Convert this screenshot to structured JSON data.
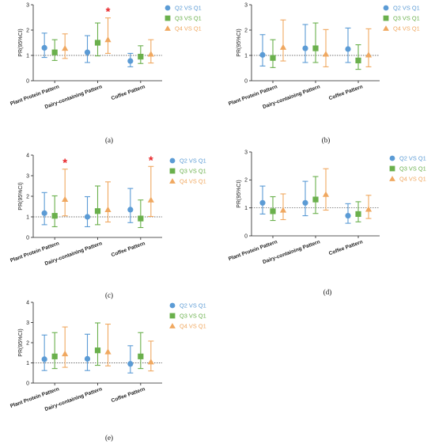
{
  "chart_data": [
    {
      "type": "scatter",
      "panel_label": "(a)",
      "ylabel": "PR(95%CI)",
      "ylim": [
        0,
        3
      ],
      "yticks": [
        0,
        1,
        2,
        3
      ],
      "reference_line": 1,
      "categories": [
        "Plant Protein Pattern",
        "Dairy-containing Pattern",
        "Coffee Pattern"
      ],
      "series": [
        {
          "name": "Q2 VS Q1",
          "color": "#5b9bd5",
          "marker": "circle",
          "values": [
            1.3,
            1.12,
            0.78
          ],
          "lower": [
            0.92,
            0.72,
            0.55
          ],
          "upper": [
            1.88,
            1.78,
            1.08
          ]
        },
        {
          "name": "Q3 VS Q1",
          "color": "#6ab04c",
          "marker": "square",
          "values": [
            1.12,
            1.5,
            0.95
          ],
          "lower": [
            0.8,
            0.98,
            0.68
          ],
          "upper": [
            1.62,
            2.28,
            1.38
          ]
        },
        {
          "name": "Q4 VS Q1",
          "color": "#f0a860",
          "marker": "triangle",
          "values": [
            1.28,
            1.62,
            1.05
          ],
          "lower": [
            0.88,
            1.08,
            0.7
          ],
          "upper": [
            1.85,
            2.48,
            1.62
          ]
        }
      ],
      "significant": [
        {
          "category": 1,
          "series": 2,
          "label": "*"
        }
      ]
    },
    {
      "type": "scatter",
      "panel_label": "(b)",
      "ylabel": "PR(95%CI)",
      "ylim": [
        0,
        3
      ],
      "yticks": [
        0,
        1,
        2,
        3
      ],
      "reference_line": 1,
      "categories": [
        "Plant Protein Pattern",
        "Dairy-containing Pattern",
        "Coffee Pattern"
      ],
      "series": [
        {
          "name": "Q2 VS Q1",
          "color": "#5b9bd5",
          "marker": "circle",
          "values": [
            1.02,
            1.28,
            1.25
          ],
          "lower": [
            0.58,
            0.72,
            0.72
          ],
          "upper": [
            1.82,
            2.22,
            2.08
          ]
        },
        {
          "name": "Q3 VS Q1",
          "color": "#6ab04c",
          "marker": "square",
          "values": [
            0.9,
            1.28,
            0.8
          ],
          "lower": [
            0.52,
            0.72,
            0.45
          ],
          "upper": [
            1.62,
            2.28,
            1.42
          ]
        },
        {
          "name": "Q4 VS Q1",
          "color": "#f0a860",
          "marker": "triangle",
          "values": [
            1.32,
            1.05,
            1.02
          ],
          "lower": [
            0.78,
            0.55,
            0.55
          ],
          "upper": [
            2.4,
            2.02,
            2.05
          ]
        }
      ],
      "significant": []
    },
    {
      "type": "scatter",
      "panel_label": "(c)",
      "ylabel": "PR(95%CI)",
      "ylim": [
        0,
        4
      ],
      "yticks": [
        0,
        1,
        2,
        3,
        4
      ],
      "reference_line": 1,
      "categories": [
        "Plant Protein Pattern",
        "Dairy-containing Pattern",
        "Coffee Pattern"
      ],
      "series": [
        {
          "name": "Q2 VS Q1",
          "color": "#5b9bd5",
          "marker": "circle",
          "values": [
            1.18,
            1.0,
            1.35
          ],
          "lower": [
            0.62,
            0.52,
            0.72
          ],
          "upper": [
            2.18,
            1.98,
            2.38
          ]
        },
        {
          "name": "Q3 VS Q1",
          "color": "#6ab04c",
          "marker": "square",
          "values": [
            1.05,
            1.28,
            0.92
          ],
          "lower": [
            0.52,
            0.62,
            0.48
          ],
          "upper": [
            2.02,
            2.5,
            1.82
          ]
        },
        {
          "name": "Q4 VS Q1",
          "color": "#f0a860",
          "marker": "triangle",
          "values": [
            1.85,
            1.35,
            1.82
          ],
          "lower": [
            1.05,
            0.75,
            1.02
          ],
          "upper": [
            3.32,
            2.7,
            3.45
          ]
        }
      ],
      "significant": [
        {
          "category": 0,
          "series": 2,
          "label": "*"
        },
        {
          "category": 2,
          "series": 2,
          "label": "*"
        }
      ]
    },
    {
      "type": "scatter",
      "panel_label": "(d)",
      "ylabel": "PR(95%CI)",
      "ylim": [
        0,
        3
      ],
      "yticks": [
        0,
        1,
        2,
        3
      ],
      "reference_line": 1,
      "categories": [
        "Plant Protein Pattern",
        "Dairy-containing Pattern",
        "Coffee Pattern"
      ],
      "series": [
        {
          "name": "Q2 VS Q1",
          "color": "#5b9bd5",
          "marker": "circle",
          "values": [
            1.18,
            1.18,
            0.72
          ],
          "lower": [
            0.78,
            0.72,
            0.45
          ],
          "upper": [
            1.78,
            1.95,
            1.15
          ]
        },
        {
          "name": "Q3 VS Q1",
          "color": "#6ab04c",
          "marker": "square",
          "values": [
            0.88,
            1.3,
            0.78
          ],
          "lower": [
            0.55,
            0.8,
            0.5
          ],
          "upper": [
            1.4,
            2.12,
            1.22
          ]
        },
        {
          "name": "Q4 VS Q1",
          "color": "#f0a860",
          "marker": "triangle",
          "values": [
            0.92,
            1.48,
            0.95
          ],
          "lower": [
            0.58,
            0.92,
            0.62
          ],
          "upper": [
            1.5,
            2.4,
            1.45
          ]
        }
      ],
      "significant": []
    },
    {
      "type": "scatter",
      "panel_label": "(e)",
      "ylabel": "PR(95%CI)",
      "ylim": [
        0,
        4
      ],
      "yticks": [
        0,
        1,
        2,
        3,
        4
      ],
      "reference_line": 1,
      "categories": [
        "Plant Protein Pattern",
        "Dairy-containing Pattern",
        "Coffee Pattern"
      ],
      "series": [
        {
          "name": "Q2 VS Q1",
          "color": "#5b9bd5",
          "marker": "circle",
          "values": [
            1.18,
            1.2,
            0.95
          ],
          "lower": [
            0.62,
            0.62,
            0.5
          ],
          "upper": [
            2.38,
            2.42,
            1.85
          ]
        },
        {
          "name": "Q3 VS Q1",
          "color": "#6ab04c",
          "marker": "square",
          "values": [
            1.32,
            1.62,
            1.32
          ],
          "lower": [
            0.72,
            0.88,
            0.72
          ],
          "upper": [
            2.5,
            2.98,
            2.5
          ]
        },
        {
          "name": "Q4 VS Q1",
          "color": "#f0a860",
          "marker": "triangle",
          "values": [
            1.45,
            1.55,
            1.05
          ],
          "lower": [
            0.78,
            0.85,
            0.6
          ],
          "upper": [
            2.78,
            2.92,
            2.08
          ]
        }
      ],
      "significant": []
    }
  ]
}
